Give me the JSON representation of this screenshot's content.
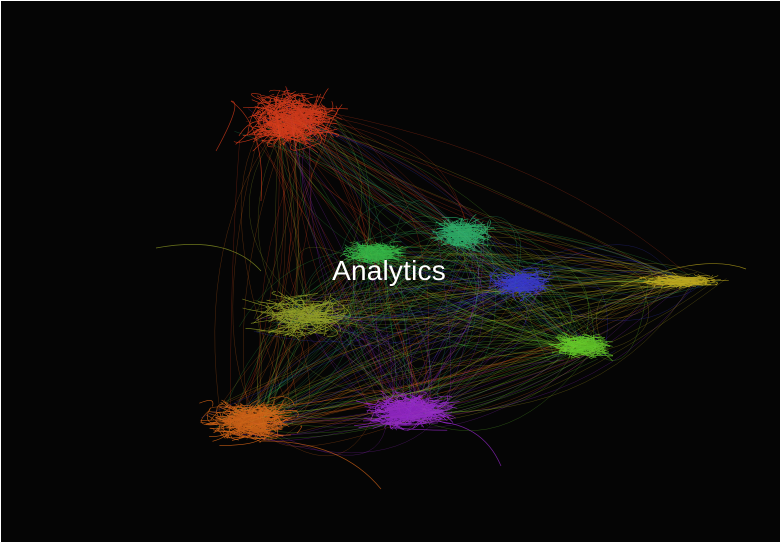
{
  "label": "Analytics",
  "colors": {
    "background": "#050505",
    "label": "#ffffff"
  },
  "clusters": [
    {
      "name": "red",
      "color": "#e8401c"
    },
    {
      "name": "green",
      "color": "#2fb870"
    },
    {
      "name": "light-green",
      "color": "#37c24a"
    },
    {
      "name": "blue",
      "color": "#3a3ad8"
    },
    {
      "name": "yellow",
      "color": "#c8b21e"
    },
    {
      "name": "lime",
      "color": "#6ad62a"
    },
    {
      "name": "orange",
      "color": "#e06a18"
    },
    {
      "name": "purple",
      "color": "#a02ad8"
    },
    {
      "name": "olive",
      "color": "#9aa828"
    }
  ]
}
